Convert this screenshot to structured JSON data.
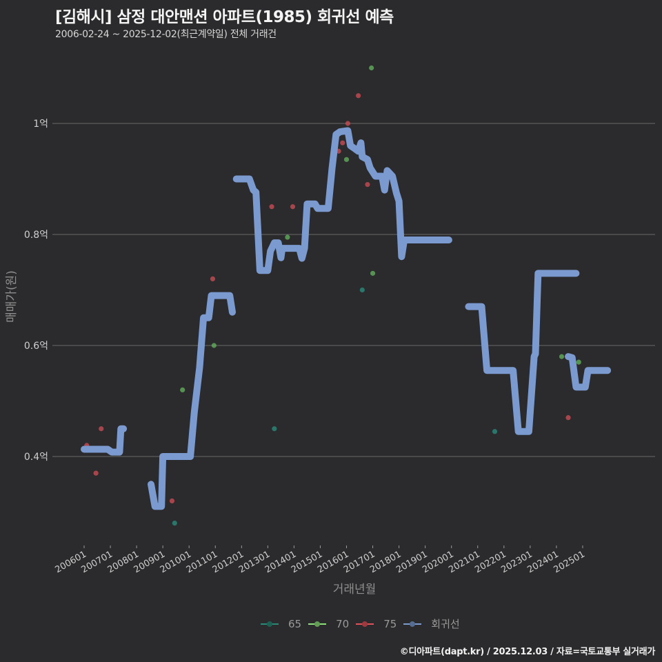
{
  "header": {
    "title": "[김해시] 삼정 대안맨션 아파트(1985) 회귀선 예측",
    "subtitle": "2006-02-24 ~ 2025-12-02(최근계약일) 전체 거래건"
  },
  "footer": {
    "credit": "©디아파트(dapt.kr) / 2025.12.03 / 자료=국토교통부 실거래가"
  },
  "legend": [
    {
      "label": "65",
      "color": "#2a8a7a"
    },
    {
      "label": "70",
      "color": "#8ee07a"
    },
    {
      "label": "75",
      "color": "#e0525a"
    },
    {
      "label": "회귀선",
      "color": "#7b9bd0"
    }
  ],
  "colors": {
    "background": "#2b2a2c",
    "grid": "#6a6a6a",
    "regression": "#7b9bd0",
    "s65": "#2a8a7a",
    "s70": "#5fae5a",
    "s75": "#c84c55"
  },
  "chart_data": {
    "type": "scatter",
    "title": "[김해시] 삼정 대안맨션 아파트(1985) 회귀선 예측",
    "subtitle": "2006-02-24 ~ 2025-12-02(최근계약일) 전체 거래건",
    "xlabel": "거래년월",
    "ylabel": "매매가(원)",
    "x_ticks": [
      "200601",
      "200701",
      "200801",
      "200901",
      "201001",
      "201101",
      "201201",
      "201301",
      "201401",
      "201501",
      "201601",
      "201701",
      "201801",
      "201901",
      "202001",
      "202101",
      "202201",
      "202301",
      "202401",
      "202501"
    ],
    "y_ticks": [
      {
        "value": 0.4,
        "label": "0.4억"
      },
      {
        "value": 0.6,
        "label": "0.6억"
      },
      {
        "value": 0.8,
        "label": "0.8억"
      },
      {
        "value": 1.0,
        "label": "1억"
      }
    ],
    "ylim": [
      0.24,
      1.12
    ],
    "grid": "horizontal",
    "legend_position": "bottom",
    "series": [
      {
        "name": "65",
        "type": "scatter",
        "points": [
          {
            "x": 2009.45,
            "y": 0.28
          },
          {
            "x": 2013.25,
            "y": 0.45
          },
          {
            "x": 2016.6,
            "y": 0.7
          },
          {
            "x": 2021.1,
            "y": 0.67
          },
          {
            "x": 2021.65,
            "y": 0.445
          }
        ]
      },
      {
        "name": "70",
        "type": "scatter",
        "points": [
          {
            "x": 2009.75,
            "y": 0.52
          },
          {
            "x": 2010.95,
            "y": 0.6
          },
          {
            "x": 2013.75,
            "y": 0.795
          },
          {
            "x": 2016.0,
            "y": 0.935
          },
          {
            "x": 2016.95,
            "y": 1.1
          },
          {
            "x": 2017.0,
            "y": 0.73
          },
          {
            "x": 2024.2,
            "y": 0.58
          },
          {
            "x": 2024.85,
            "y": 0.57
          }
        ]
      },
      {
        "name": "75",
        "type": "scatter",
        "points": [
          {
            "x": 2006.1,
            "y": 0.42
          },
          {
            "x": 2006.45,
            "y": 0.37
          },
          {
            "x": 2006.65,
            "y": 0.45
          },
          {
            "x": 2009.35,
            "y": 0.32
          },
          {
            "x": 2010.9,
            "y": 0.72
          },
          {
            "x": 2013.15,
            "y": 0.85
          },
          {
            "x": 2013.95,
            "y": 0.85
          },
          {
            "x": 2015.7,
            "y": 0.95
          },
          {
            "x": 2015.85,
            "y": 0.965
          },
          {
            "x": 2016.05,
            "y": 1.0
          },
          {
            "x": 2016.45,
            "y": 1.05
          },
          {
            "x": 2016.8,
            "y": 0.89
          },
          {
            "x": 2024.45,
            "y": 0.47
          }
        ]
      },
      {
        "name": "회귀선",
        "type": "line",
        "points": [
          {
            "x": 2006.0,
            "y": 0.413
          },
          {
            "x": 2006.9,
            "y": 0.413
          },
          {
            "x": 2007.05,
            "y": 0.408
          },
          {
            "x": 2007.35,
            "y": 0.408
          },
          {
            "x": 2007.4,
            "y": 0.45
          },
          {
            "x": 2007.5,
            "y": 0.45
          }
        ],
        "segments": [
          [
            [
              2006.0,
              0.413
            ],
            [
              2006.9,
              0.413
            ],
            [
              2007.05,
              0.408
            ],
            [
              2007.35,
              0.408
            ],
            [
              2007.4,
              0.45
            ],
            [
              2007.5,
              0.45
            ]
          ],
          [
            [
              2008.55,
              0.35
            ],
            [
              2008.7,
              0.31
            ],
            [
              2008.95,
              0.31
            ],
            [
              2009.0,
              0.4
            ],
            [
              2010.05,
              0.4
            ],
            [
              2010.2,
              0.48
            ],
            [
              2010.4,
              0.56
            ],
            [
              2010.55,
              0.65
            ],
            [
              2010.75,
              0.65
            ],
            [
              2010.85,
              0.69
            ],
            [
              2011.55,
              0.69
            ],
            [
              2011.65,
              0.66
            ]
          ],
          [
            [
              2011.8,
              0.9
            ],
            [
              2012.3,
              0.9
            ],
            [
              2012.45,
              0.88
            ],
            [
              2012.55,
              0.876
            ],
            [
              2012.7,
              0.735
            ],
            [
              2013.0,
              0.735
            ],
            [
              2013.1,
              0.77
            ],
            [
              2013.25,
              0.785
            ],
            [
              2013.4,
              0.785
            ],
            [
              2013.5,
              0.758
            ],
            [
              2013.55,
              0.775
            ],
            [
              2014.2,
              0.775
            ],
            [
              2014.3,
              0.757
            ],
            [
              2014.4,
              0.775
            ],
            [
              2014.5,
              0.855
            ],
            [
              2014.8,
              0.855
            ],
            [
              2014.9,
              0.847
            ],
            [
              2015.3,
              0.847
            ],
            [
              2015.45,
              0.92
            ],
            [
              2015.6,
              0.98
            ],
            [
              2015.75,
              0.985
            ],
            [
              2016.05,
              0.987
            ],
            [
              2016.15,
              0.96
            ],
            [
              2016.3,
              0.955
            ],
            [
              2016.45,
              0.95
            ],
            [
              2016.55,
              0.965
            ],
            [
              2016.6,
              0.94
            ],
            [
              2016.8,
              0.935
            ],
            [
              2016.9,
              0.92
            ],
            [
              2017.1,
              0.905
            ],
            [
              2017.35,
              0.905
            ],
            [
              2017.45,
              0.88
            ],
            [
              2017.55,
              0.915
            ],
            [
              2017.75,
              0.905
            ],
            [
              2017.9,
              0.875
            ],
            [
              2018.0,
              0.86
            ],
            [
              2018.1,
              0.76
            ],
            [
              2018.2,
              0.79
            ],
            [
              2019.9,
              0.79
            ]
          ],
          [
            [
              2020.65,
              0.67
            ],
            [
              2021.15,
              0.67
            ],
            [
              2021.35,
              0.555
            ],
            [
              2022.35,
              0.555
            ],
            [
              2022.55,
              0.445
            ],
            [
              2022.95,
              0.445
            ],
            [
              2023.15,
              0.58
            ],
            [
              2023.2,
              0.585
            ],
            [
              2023.3,
              0.73
            ],
            [
              2024.75,
              0.73
            ]
          ],
          [
            [
              2024.45,
              0.58
            ],
            [
              2024.6,
              0.578
            ],
            [
              2024.75,
              0.525
            ],
            [
              2025.1,
              0.525
            ],
            [
              2025.2,
              0.555
            ],
            [
              2025.95,
              0.555
            ]
          ]
        ]
      }
    ]
  },
  "axes": {
    "x_title": "거래년월",
    "y_title": "매매가(원)"
  }
}
